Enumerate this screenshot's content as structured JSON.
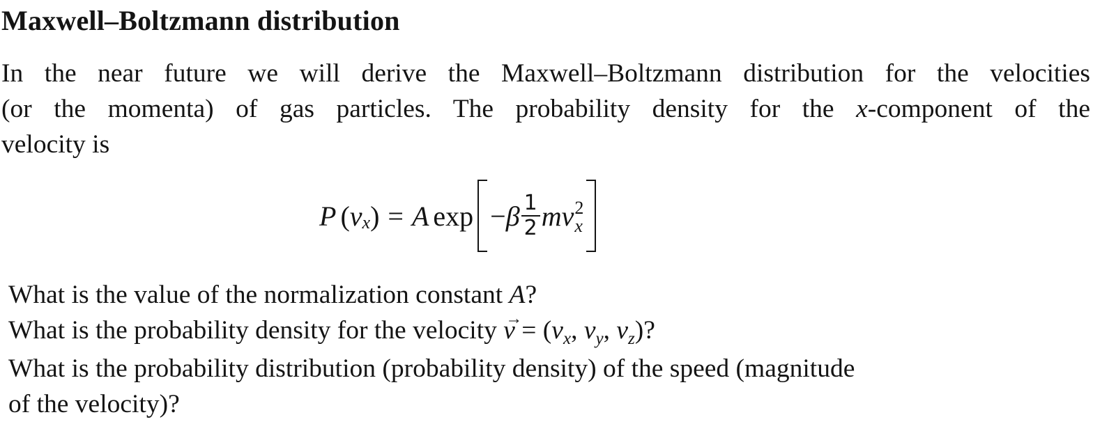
{
  "heading": "Maxwell–Boltzmann distribution",
  "intro": {
    "line1": "In the near future we will derive the Maxwell–Boltzmann distribution for the velocities",
    "line2_start": "(or the momenta) of gas particles. The probability density for the ",
    "line2_var": "x",
    "line2_end": "-component of the",
    "line3": "velocity is"
  },
  "equation": {
    "lhs_func": "P",
    "lhs_open": "(",
    "lhs_var": "v",
    "lhs_sub": "x",
    "lhs_close": ")",
    "equals": "=",
    "coef": "A",
    "func": "exp",
    "minus": "−",
    "beta": "β",
    "frac_num": "1",
    "frac_den": "2",
    "mass": "m",
    "var": "v",
    "exp_sup": "2",
    "exp_sub": "x"
  },
  "questions": {
    "q1_start": "What is the value of the normalization constant ",
    "q1_var": "A",
    "q1_end": "?",
    "q2_start": "What is the probability density for the velocity ",
    "q2_vec_arrow": "→",
    "q2_vec": "v",
    "q2_eq": " = (",
    "q2_v1": "v",
    "q2_s1": "x",
    "q2_c1": ", ",
    "q2_v2": "v",
    "q2_s2": "y",
    "q2_c2": ", ",
    "q2_v3": "v",
    "q2_s3": "z",
    "q2_end": ")?",
    "q3_line1": "What is the probability distribution (probability density) of the speed (magnitude",
    "q3_line2": "of the velocity)?"
  }
}
